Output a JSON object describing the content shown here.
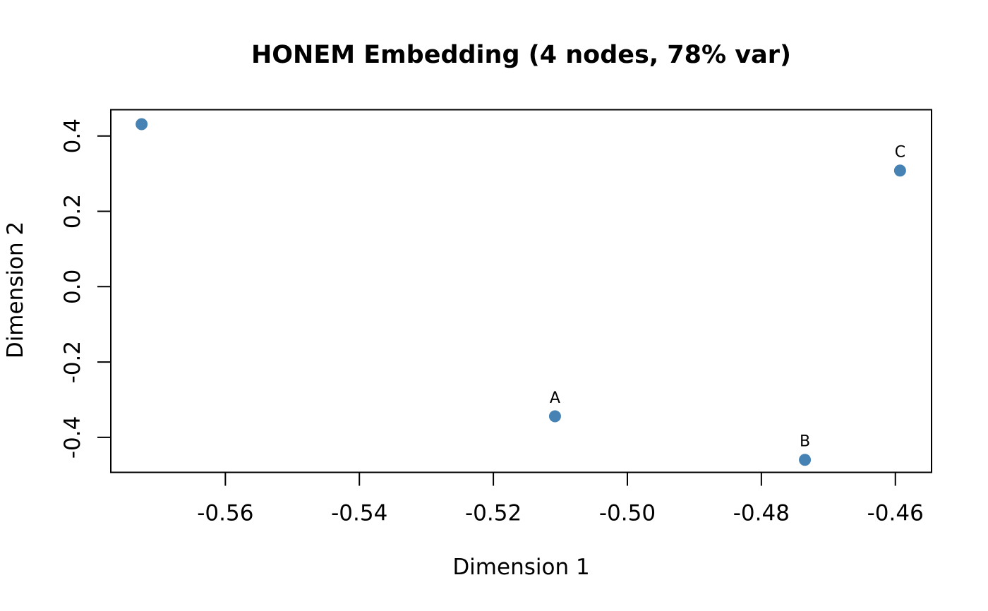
{
  "page": {
    "background_color": "#ffffff",
    "text_color": "#000000"
  },
  "chart_data": {
    "type": "scatter",
    "title": "HONEM Embedding (4 nodes, 78% var)",
    "xlabel": "Dimension 1",
    "ylabel": "Dimension 2",
    "points": [
      {
        "label": "",
        "x": -0.5725,
        "y": 0.4313
      },
      {
        "label": "A",
        "x": -0.5108,
        "y": -0.3441
      },
      {
        "label": "B",
        "x": -0.4735,
        "y": -0.4596
      },
      {
        "label": "C",
        "x": -0.4593,
        "y": 0.3082
      }
    ],
    "point_color": "#4682B4",
    "point_radius_px": 8.5,
    "x_ticks": [
      -0.56,
      -0.54,
      -0.52,
      -0.5,
      -0.48,
      -0.46
    ],
    "x_tick_labels": [
      "-0.56",
      "-0.54",
      "-0.52",
      "-0.50",
      "-0.48",
      "-0.46"
    ],
    "y_ticks": [
      0.4,
      0.2,
      0.0,
      -0.2,
      -0.4
    ],
    "y_tick_labels": [
      "0.4",
      "0.2",
      "0.0",
      "-0.2",
      "-0.4"
    ],
    "xlim": [
      -0.5771,
      -0.4546
    ],
    "ylim": [
      -0.4929,
      0.4697
    ],
    "grid": false,
    "legend": null,
    "box_color": "#000000"
  }
}
